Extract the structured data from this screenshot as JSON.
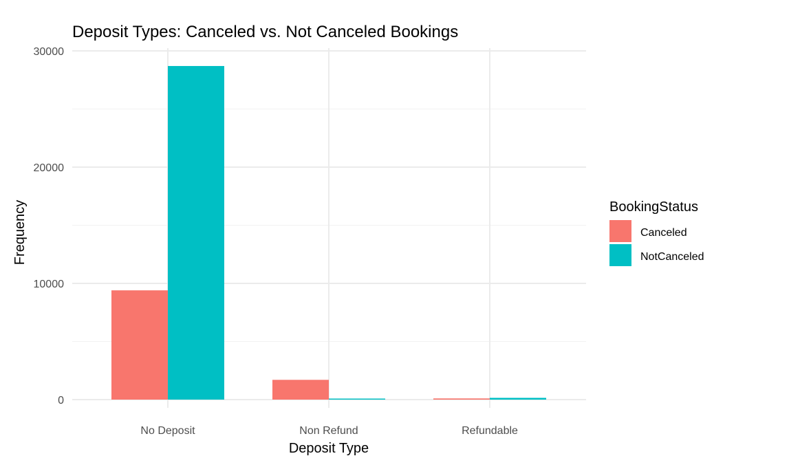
{
  "chart_data": {
    "type": "bar",
    "title": "Deposit Types: Canceled vs. Not Canceled Bookings",
    "xlabel": "Deposit Type",
    "ylabel": "Frequency",
    "categories": [
      "No Deposit",
      "Non Refund",
      "Refundable"
    ],
    "series": [
      {
        "name": "Canceled",
        "color": "#F8766D",
        "values": [
          9400,
          1700,
          100
        ]
      },
      {
        "name": "NotCanceled",
        "color": "#00BFC4",
        "values": [
          28700,
          80,
          150
        ]
      }
    ],
    "ylim": [
      0,
      30000
    ],
    "yticks": [
      0,
      10000,
      20000,
      30000
    ],
    "grid": true,
    "legend": {
      "title": "BookingStatus",
      "placement": "right"
    }
  }
}
